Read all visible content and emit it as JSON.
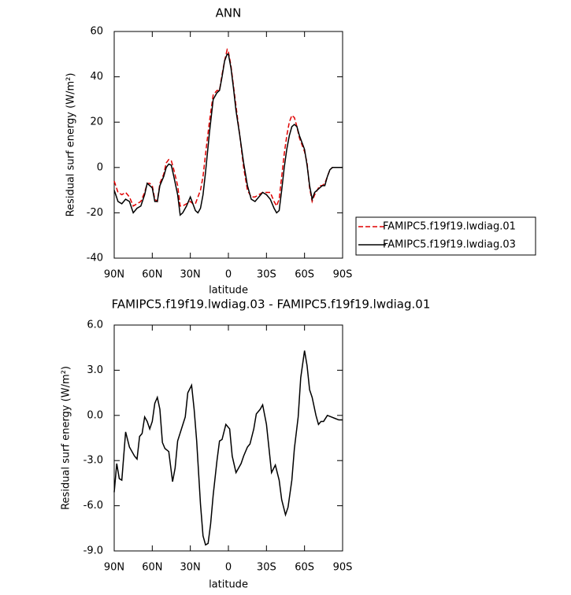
{
  "chart_data": [
    {
      "type": "line",
      "title": "ANN",
      "xlabel": "latitude",
      "ylabel": "Residual surf energy (W/m²)",
      "x": [
        90,
        87,
        84,
        81,
        78,
        75,
        72,
        69,
        66,
        64,
        62,
        60,
        58,
        56,
        54,
        51,
        49,
        47,
        45,
        43,
        40,
        38,
        36,
        33,
        30,
        28,
        26,
        24,
        22,
        20,
        18,
        15,
        12,
        9,
        7,
        5,
        3,
        1,
        0,
        -2,
        -4,
        -6,
        -9,
        -12,
        -15,
        -18,
        -21,
        -24,
        -27,
        -30,
        -33,
        -36,
        -38,
        -40,
        -42,
        -44,
        -46,
        -48,
        -50,
        -52,
        -54,
        -56,
        -58,
        -60,
        -62,
        -64,
        -66,
        -68,
        -70,
        -72,
        -74,
        -76,
        -78,
        -80,
        -82,
        -86,
        -90
      ],
      "series": [
        {
          "name": "FAMIPC5.f19f19.lwdiag.01",
          "color": "#e00000",
          "dash": "dashed",
          "values": [
            -6,
            -11,
            -12,
            -11,
            -13,
            -17,
            -16,
            -15,
            -11,
            -7,
            -7,
            -8,
            -14,
            -15,
            -7,
            -3,
            2,
            3.5,
            3,
            -1,
            -8,
            -17,
            -17,
            -16,
            -15,
            -16,
            -16,
            -13,
            -10,
            -4,
            6,
            20,
            32,
            34,
            34,
            41,
            47,
            52,
            51,
            45,
            36,
            27,
            14,
            0,
            -10,
            -13,
            -13,
            -12,
            -11,
            -11,
            -11,
            -15,
            -17,
            -14,
            -4,
            6,
            14,
            20,
            23,
            22,
            18,
            13,
            10,
            7,
            2,
            -9,
            -15,
            -12,
            -10,
            -8,
            -8,
            -7,
            -4,
            -1,
            0,
            0,
            0
          ]
        },
        {
          "name": "FAMIPC5.f19f19.lwdiag.03",
          "color": "#000000",
          "dash": "solid",
          "values": [
            -10,
            -15,
            -16,
            -14,
            -15,
            -20,
            -18,
            -17,
            -12,
            -7,
            -8,
            -9,
            -15,
            -15,
            -8,
            -4,
            0,
            1.5,
            1,
            -4,
            -12,
            -21,
            -20,
            -17,
            -13,
            -16,
            -19,
            -20,
            -18,
            -12,
            -2,
            15,
            30,
            33,
            34,
            40,
            47,
            50,
            50,
            44,
            35,
            25,
            14,
            2,
            -8,
            -14,
            -15,
            -13,
            -11,
            -12,
            -14,
            -18,
            -20,
            -19,
            -10,
            0,
            8,
            14,
            18,
            19,
            18,
            14,
            11,
            8,
            1,
            -8,
            -14,
            -11,
            -10,
            -9,
            -8,
            -8,
            -4,
            -1,
            0,
            0,
            0
          ]
        }
      ],
      "xlim": [
        90,
        -90
      ],
      "xticks": [
        {
          "value": 90,
          "label": "90N"
        },
        {
          "value": 60,
          "label": "60N"
        },
        {
          "value": 30,
          "label": "30N"
        },
        0,
        {
          "value": -30,
          "label": "30S"
        },
        {
          "value": -60,
          "label": "60S"
        },
        {
          "value": -90,
          "label": "90S"
        }
      ],
      "ylim": [
        -40,
        60
      ],
      "yticks": [
        -40,
        -20,
        0,
        20,
        40,
        60
      ],
      "legend": "right"
    },
    {
      "type": "line",
      "title": "FAMIPC5.f19f19.lwdiag.03 - FAMIPC5.f19f19.lwdiag.01",
      "xlabel": "latitude",
      "ylabel": "Residual surf energy (W/m²)",
      "x": [
        90,
        88,
        86,
        84,
        81,
        78,
        74,
        72,
        70,
        68,
        66,
        64,
        62,
        60,
        58,
        56,
        54,
        52,
        50,
        47,
        44,
        42,
        40,
        37,
        34,
        32,
        29,
        27,
        25,
        22,
        20,
        18,
        16,
        14,
        12,
        9,
        7,
        5,
        2,
        -1,
        -3,
        -6,
        -8,
        -10,
        -12,
        -15,
        -17,
        -20,
        -22,
        -25,
        -27,
        -30,
        -32,
        -34,
        -37,
        -40,
        -42,
        -45,
        -47,
        -50,
        -52,
        -55,
        -57,
        -60,
        -62,
        -64,
        -66,
        -69,
        -71,
        -73,
        -75,
        -78,
        -81,
        -84,
        -87,
        -90
      ],
      "series": [
        {
          "color": "#000000",
          "dash": "solid",
          "values": [
            -5.1,
            -3.2,
            -4.2,
            -4.3,
            -1.1,
            -2.1,
            -2.7,
            -2.9,
            -1.4,
            -1.2,
            -0.1,
            -0.4,
            -0.9,
            -0.4,
            0.8,
            1.2,
            0.4,
            -1.8,
            -2.2,
            -2.4,
            -4.4,
            -3.5,
            -1.7,
            -0.9,
            -0.1,
            1.5,
            2.0,
            0.4,
            -1.7,
            -5.9,
            -8.0,
            -8.6,
            -8.5,
            -7.2,
            -5.3,
            -3.0,
            -1.7,
            -1.6,
            -0.6,
            -0.9,
            -2.7,
            -3.8,
            -3.5,
            -3.2,
            -2.7,
            -2.1,
            -1.9,
            -0.9,
            0.1,
            0.4,
            0.7,
            -0.6,
            -2.2,
            -3.8,
            -3.3,
            -4.3,
            -5.6,
            -6.6,
            -6.1,
            -4.3,
            -2.2,
            -0.1,
            2.5,
            4.3,
            3.3,
            1.7,
            1.2,
            0.0,
            -0.6,
            -0.4,
            -0.4,
            0.0,
            -0.1,
            -0.2,
            -0.3,
            -0.3
          ]
        }
      ],
      "xlim": [
        90,
        -90
      ],
      "xticks": [
        {
          "value": 90,
          "label": "90N"
        },
        {
          "value": 60,
          "label": "60N"
        },
        {
          "value": 30,
          "label": "30N"
        },
        0,
        {
          "value": -30,
          "label": "30S"
        },
        {
          "value": -60,
          "label": "60S"
        },
        {
          "value": -90,
          "label": "90S"
        }
      ],
      "ylim": [
        -9,
        6
      ],
      "yticks": [
        {
          "value": -9,
          "label": "-9.0"
        },
        {
          "value": -6,
          "label": "-6.0"
        },
        {
          "value": -3,
          "label": "-3.0"
        },
        {
          "value": 0,
          "label": "0.0"
        },
        {
          "value": 3,
          "label": "3.0"
        },
        {
          "value": 6,
          "label": "6.0"
        }
      ]
    }
  ]
}
